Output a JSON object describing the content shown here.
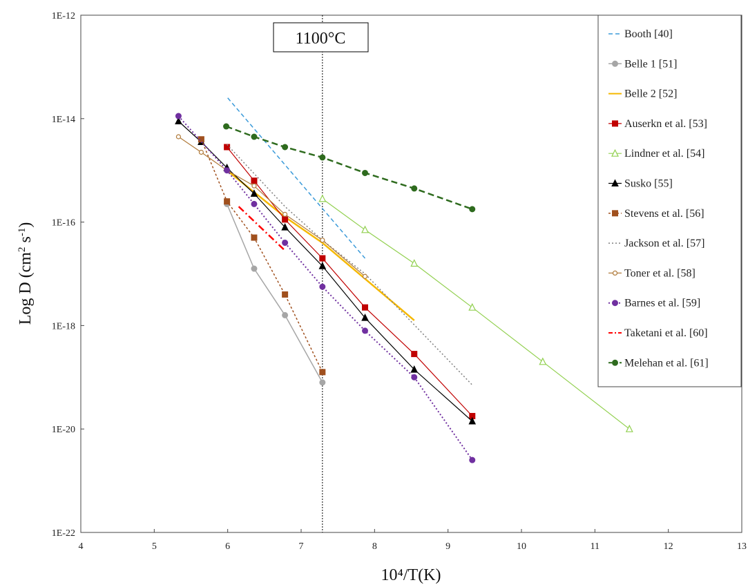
{
  "chart_data": {
    "type": "line",
    "xlabel": "10⁴/T(K)",
    "ylabel_main": "Log D (cm",
    "ylabel_sup1": "2",
    "ylabel_mid": " s",
    "ylabel_sup2": "-1",
    "ylabel_end": ")",
    "xlim": [
      4,
      13
    ],
    "ylim": [
      -22,
      -12
    ],
    "y_scale": "log",
    "x_ticks": [
      "4",
      "5",
      "6",
      "7",
      "8",
      "9",
      "10",
      "11",
      "12",
      "13"
    ],
    "y_ticks": [
      "1E-22",
      "1E-20",
      "1E-18",
      "1E-16",
      "1E-14",
      "1E-12"
    ],
    "annotation": {
      "label": "1100°C",
      "x": 7.29
    },
    "legend_position": "top-right",
    "series": [
      {
        "name": "Booth [40]",
        "color": "#3a9ad9",
        "dash": "6,4",
        "width": 1.5,
        "marker": "none",
        "x": [
          6.0,
          7.87
        ],
        "y": [
          -13.6,
          -16.7
        ]
      },
      {
        "name": "Belle 1 [51]",
        "color": "#a6a6a6",
        "dash": "",
        "width": 1.5,
        "marker": "circle",
        "x": [
          5.99,
          6.36,
          6.78,
          7.29
        ],
        "y": [
          -15.65,
          -16.9,
          -17.8,
          -19.1
        ]
      },
      {
        "name": "Belle 2 [52]",
        "color": "#f5b800",
        "dash": "",
        "width": 2.5,
        "marker": "none",
        "x": [
          5.99,
          6.78,
          7.29,
          8.54
        ],
        "y": [
          -15.0,
          -15.9,
          -16.4,
          -17.9
        ]
      },
      {
        "name": "Auserkn et al. [53]",
        "color": "#c00000",
        "dash": "",
        "width": 1.2,
        "marker": "square",
        "x": [
          5.99,
          6.36,
          6.78,
          7.29,
          7.87,
          8.54,
          9.33
        ],
        "y": [
          -14.55,
          -15.2,
          -15.95,
          -16.7,
          -17.65,
          -18.55,
          -19.75
        ]
      },
      {
        "name": "Lindner et al. [54]",
        "color": "#92d050",
        "dash": "",
        "width": 1.2,
        "marker": "triangle-open",
        "x": [
          7.29,
          7.87,
          8.54,
          9.33,
          10.29,
          11.47
        ],
        "y": [
          -15.55,
          -16.15,
          -16.8,
          -17.65,
          -18.7,
          -20.0
        ]
      },
      {
        "name": "Susko [55]",
        "color": "#000000",
        "dash": "",
        "width": 1.2,
        "marker": "triangle",
        "x": [
          5.33,
          5.64,
          5.99,
          6.36,
          6.78,
          7.29,
          7.87,
          8.54,
          9.33
        ],
        "y": [
          -14.05,
          -14.45,
          -14.95,
          -15.45,
          -16.1,
          -16.85,
          -17.85,
          -18.85,
          -19.85
        ]
      },
      {
        "name": "Stevens et al. [56]",
        "color": "#a0501e",
        "dash": "3,3",
        "width": 1.5,
        "marker": "square",
        "x": [
          5.64,
          5.99,
          6.36,
          6.78,
          7.29
        ],
        "y": [
          -14.4,
          -15.6,
          -16.3,
          -17.4,
          -18.9
        ]
      },
      {
        "name": "Jackson et al. [57]",
        "color": "#7f7f7f",
        "dash": "2,3",
        "width": 1.5,
        "marker": "none",
        "x": [
          5.99,
          6.78,
          7.29,
          7.87,
          9.33
        ],
        "y": [
          -14.5,
          -15.7,
          -16.35,
          -17.0,
          -19.15
        ]
      },
      {
        "name": "Toner et al. [58]",
        "color": "#b07a3a",
        "dash": "",
        "width": 1.2,
        "marker": "circle-open",
        "x": [
          5.33,
          5.64,
          5.99,
          6.36,
          6.78,
          7.29,
          7.87
        ],
        "y": [
          -14.35,
          -14.65,
          -15.0,
          -15.3,
          -15.85,
          -16.35,
          -17.05
        ]
      },
      {
        "name": "Barnes et al. [59]",
        "color": "#7030a0",
        "dash": "2,3",
        "width": 2.0,
        "marker": "circle-dark",
        "x": [
          5.33,
          5.99,
          6.36,
          6.78,
          7.29,
          7.87,
          8.54,
          9.33
        ],
        "y": [
          -13.95,
          -15.0,
          -15.65,
          -16.4,
          -17.25,
          -18.1,
          -19.0,
          -20.6
        ]
      },
      {
        "name": "Taketani et al. [60]",
        "color": "#ff0000",
        "dash": "10,4,2,4",
        "width": 2.5,
        "marker": "none",
        "x": [
          6.15,
          6.78
        ],
        "y": [
          -15.7,
          -16.55
        ]
      },
      {
        "name": "Melehan et al. [61]",
        "color": "#2e6b1e",
        "dash": "9,5",
        "width": 2.5,
        "marker": "circle-green",
        "x": [
          5.98,
          6.36,
          6.78,
          7.29,
          7.87,
          8.54,
          9.33
        ],
        "y": [
          -14.15,
          -14.35,
          -14.55,
          -14.75,
          -15.05,
          -15.35,
          -15.75
        ]
      }
    ]
  }
}
